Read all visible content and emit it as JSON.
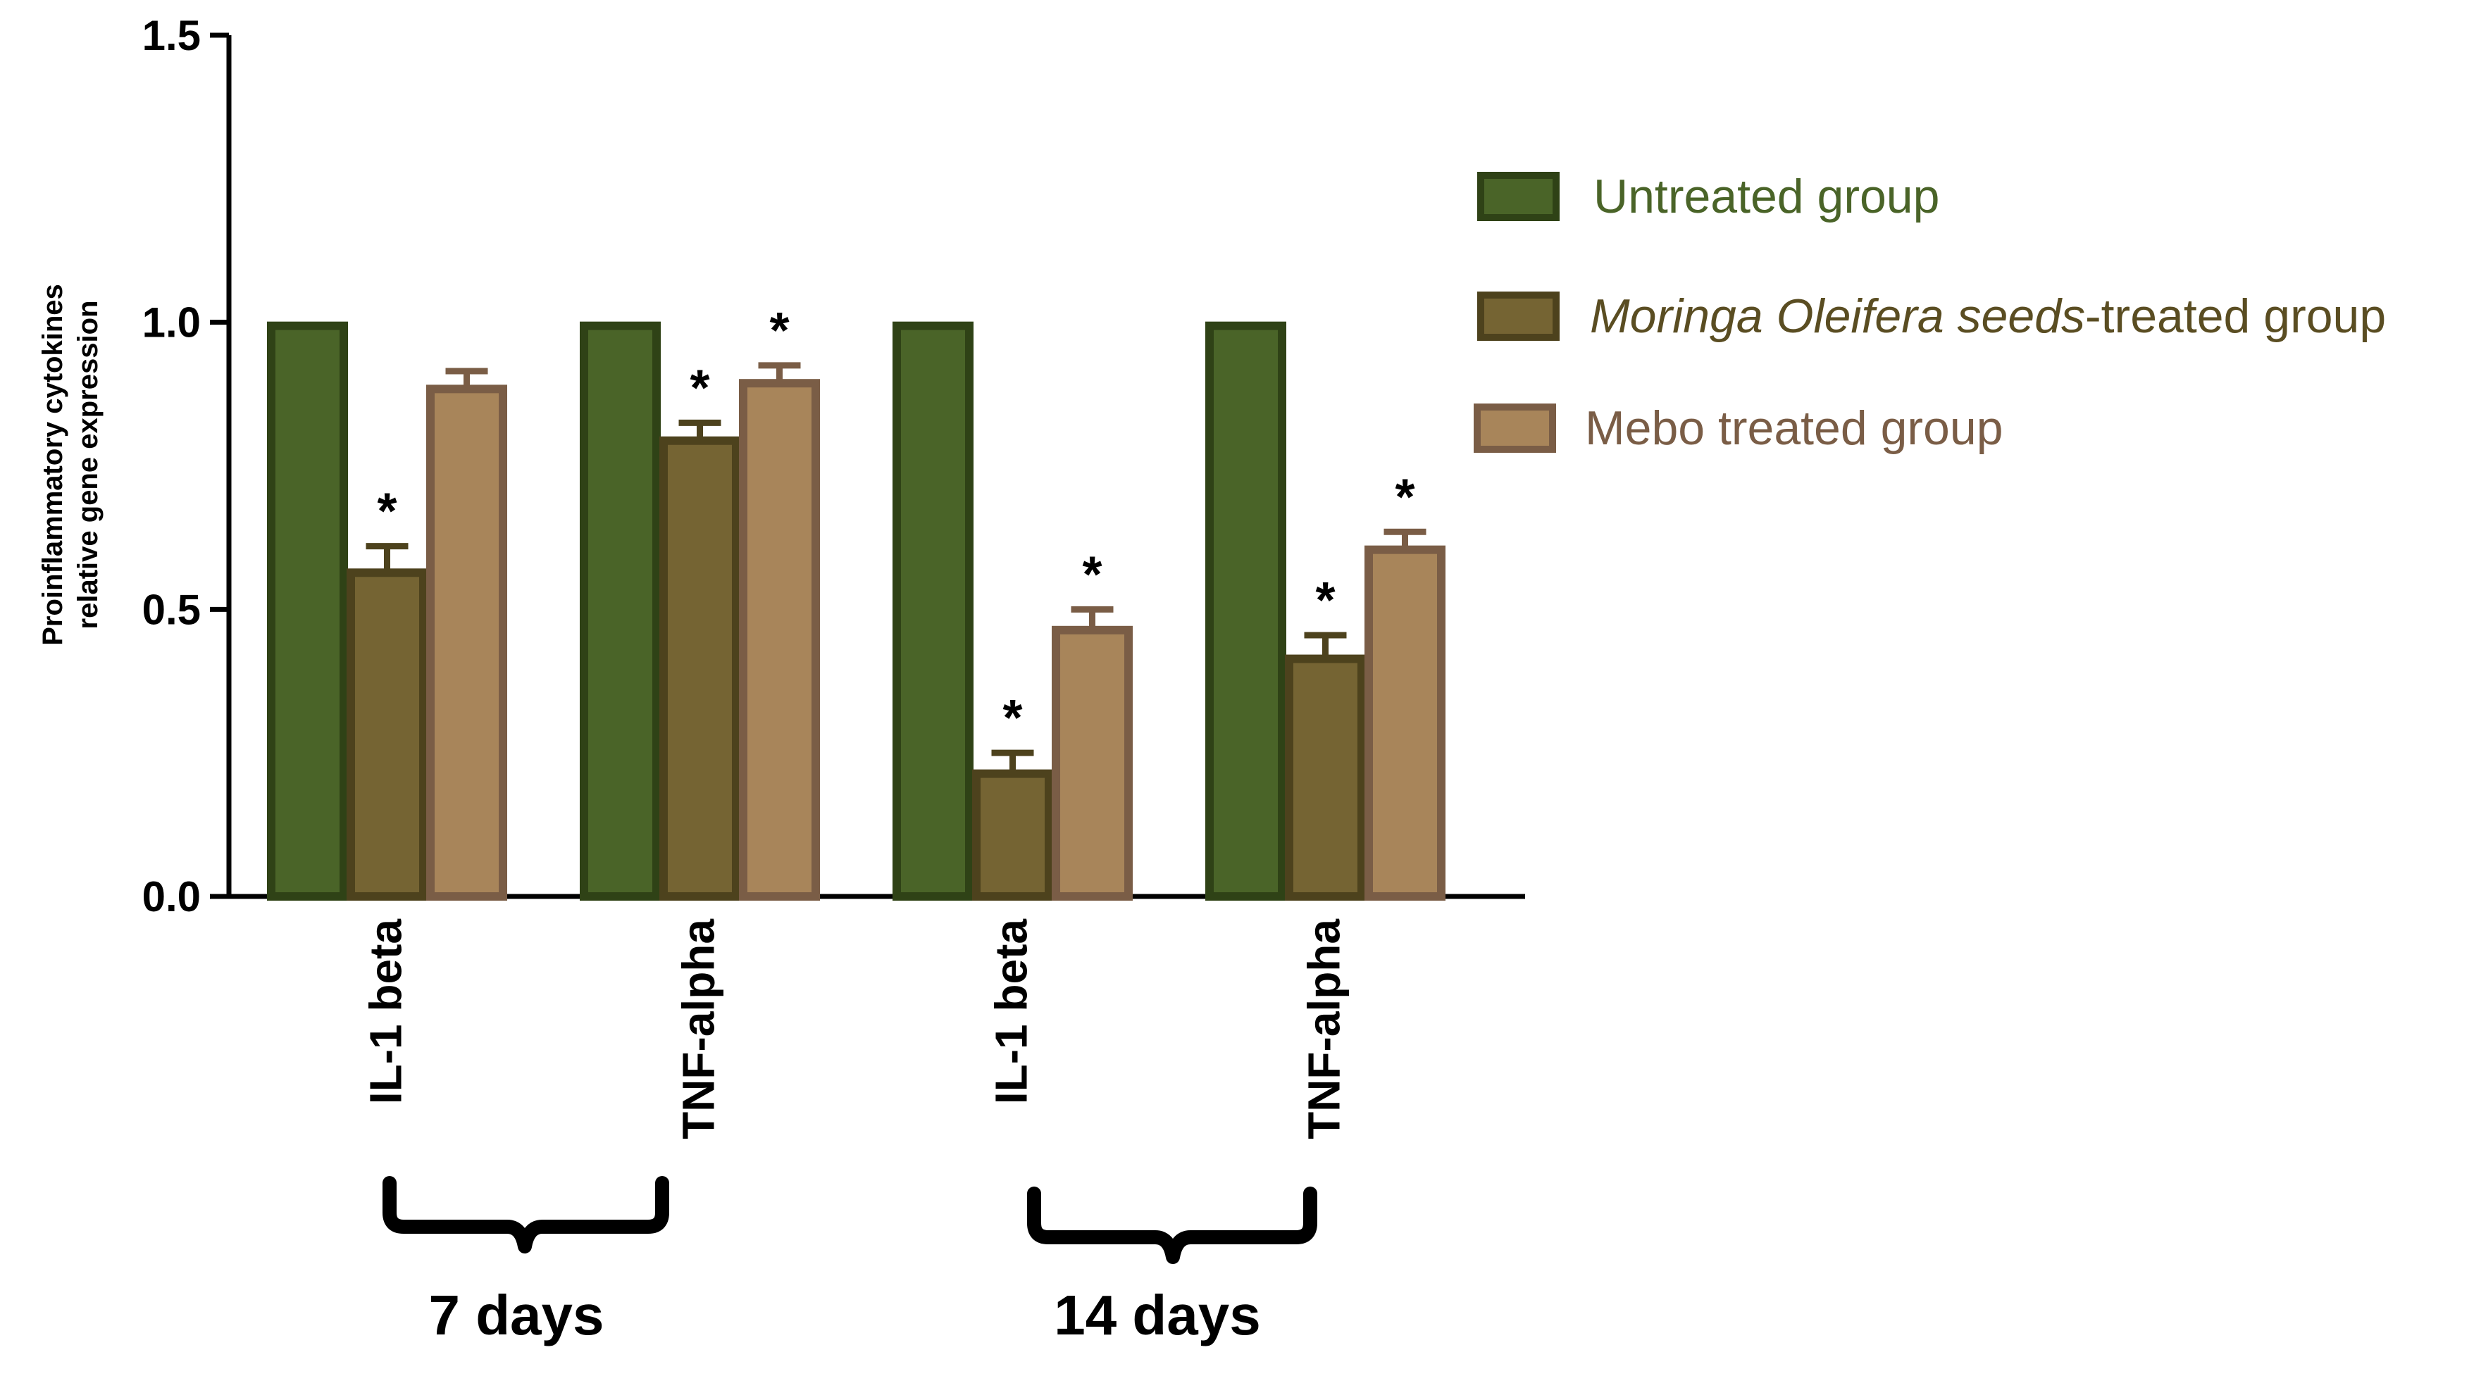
{
  "chart_data": {
    "type": "bar",
    "title": "",
    "ylabel_line1": "Proinflammatory cytokines",
    "ylabel_line2": "relative gene expression",
    "xlabel": "",
    "ylim": [
      0,
      1.5
    ],
    "yticks": [
      "0.0",
      "0.5",
      "1.0",
      "1.5"
    ],
    "ytick_values": [
      0,
      0.5,
      1.0,
      1.5
    ],
    "categories": [
      "IL-1 beta",
      "TNF-alpha",
      "IL-1 beta",
      "TNF-alpha"
    ],
    "groups": [
      {
        "label": "7 days",
        "category_indices": [
          0,
          1
        ]
      },
      {
        "label": "14 days",
        "category_indices": [
          2,
          3
        ]
      }
    ],
    "series": [
      {
        "name": "Untreated group",
        "fill": "#4a6428",
        "stroke": "#2f4216",
        "values": [
          1.0,
          1.0,
          1.0,
          1.0
        ],
        "errors": [
          0,
          0,
          0,
          0
        ],
        "significant": [
          false,
          false,
          false,
          false
        ]
      },
      {
        "name_italic": "Moringa Oleifera seeds",
        "name_rest": "-treated group",
        "fill": "#756433",
        "stroke": "#4d421d",
        "values": [
          0.57,
          0.8,
          0.22,
          0.42
        ],
        "errors": [
          0.04,
          0.025,
          0.03,
          0.035
        ],
        "significant": [
          true,
          true,
          true,
          true
        ]
      },
      {
        "name": "Mebo treated group",
        "fill": "#a8855a",
        "stroke": "#7a5d46",
        "values": [
          0.89,
          0.9,
          0.47,
          0.61
        ],
        "errors": [
          0.025,
          0.025,
          0.03,
          0.025
        ],
        "significant": [
          false,
          true,
          true,
          true
        ]
      }
    ],
    "significance_marker": "*",
    "legend_position": "right"
  },
  "colors": {
    "legend_text_1": "#4a6428",
    "legend_text_2": "#5a4d22",
    "legend_text_3": "#7a5d46"
  }
}
